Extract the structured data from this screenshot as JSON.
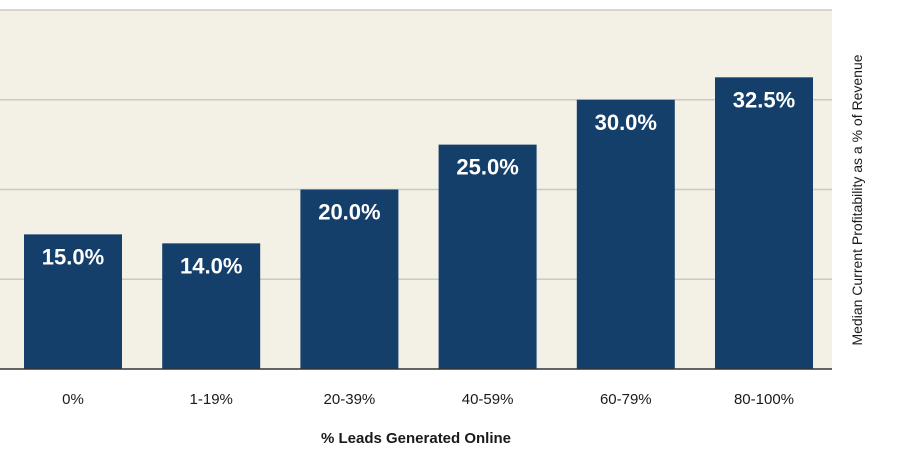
{
  "chart_data": {
    "type": "bar",
    "categories": [
      "0%",
      "1-19%",
      "20-39%",
      "40-59%",
      "60-79%",
      "80-100%"
    ],
    "values": [
      15.0,
      14.0,
      20.0,
      25.0,
      30.0,
      32.5
    ],
    "data_labels": [
      "15.0%",
      "14.0%",
      "20.0%",
      "25.0%",
      "30.0%",
      "32.5%"
    ],
    "title": "",
    "xlabel": "% Leads Generated Online",
    "ylabel": "Median Current Profitability as a % of Revenue",
    "ylim": [
      0,
      40
    ],
    "grid": true,
    "legend": "none",
    "colors": {
      "bar": "#153f6b",
      "plot_background": "#f3f1e5",
      "grid": "#c9c9c9",
      "baseline": "#333333"
    }
  }
}
